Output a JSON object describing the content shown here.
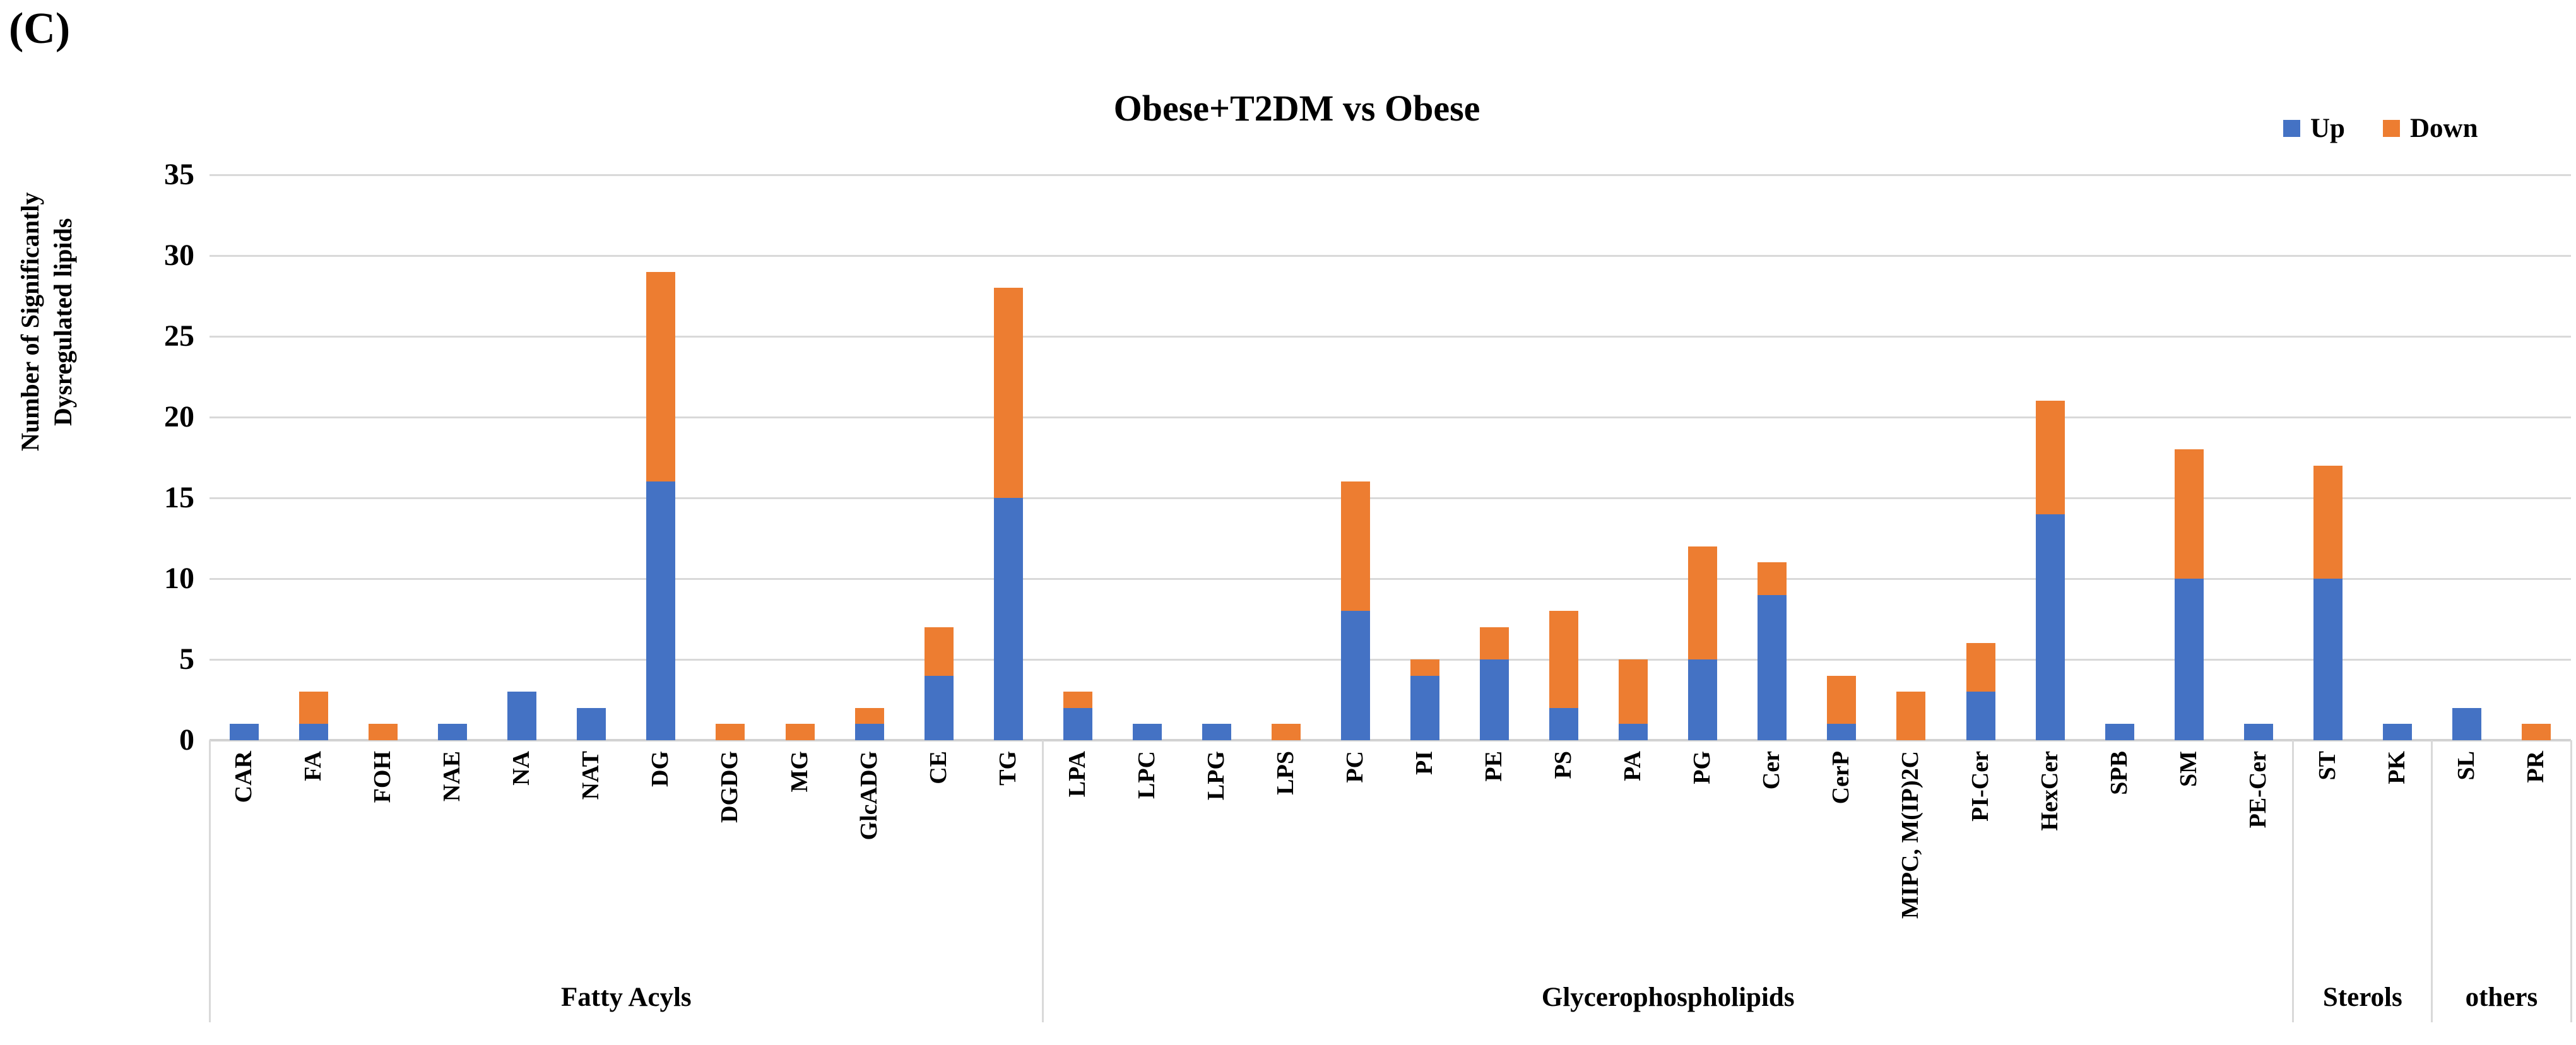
{
  "panel_label": "(C)",
  "colors": {
    "up": "#4472C4",
    "down": "#ED7D31",
    "gridline": "#D9D9D9",
    "axis_line": "#D2D2D2",
    "text": "#000000"
  },
  "chart_data": {
    "type": "bar",
    "stacked": true,
    "title": "Obese+T2DM vs Obese",
    "ylabel_lines": [
      "Number of Significantly",
      "Dysregulated lipids"
    ],
    "xlabel": "",
    "ylim": [
      0,
      35
    ],
    "yticks": [
      0,
      5,
      10,
      15,
      20,
      25,
      30,
      35
    ],
    "grid": true,
    "legend_position": "top-right",
    "legend": [
      {
        "name": "Up",
        "color": "#4472C4"
      },
      {
        "name": "Down",
        "color": "#ED7D31"
      }
    ],
    "categories": [
      "CAR",
      "FA",
      "FOH",
      "NAE",
      "NA",
      "NAT",
      "DG",
      "DGDG",
      "MG",
      "GlcADG",
      "CE",
      "TG",
      "LPA",
      "LPC",
      "LPG",
      "LPS",
      "PC",
      "PI",
      "PE",
      "PS",
      "PA",
      "PG",
      "Cer",
      "CerP",
      "MIPC, M(IP)2C",
      "PI-Cer",
      "HexCer",
      "SPB",
      "SM",
      "PE-Cer",
      "ST",
      "PK",
      "SL",
      "PR"
    ],
    "series": [
      {
        "name": "Up",
        "color": "#4472C4",
        "values": [
          1,
          1,
          0,
          1,
          3,
          2,
          16,
          0,
          0,
          1,
          4,
          15,
          2,
          1,
          1,
          0,
          8,
          4,
          5,
          2,
          1,
          5,
          9,
          1,
          0,
          3,
          14,
          1,
          10,
          1,
          10,
          1,
          2,
          0
        ]
      },
      {
        "name": "Down",
        "color": "#ED7D31",
        "values": [
          0,
          2,
          1,
          0,
          0,
          0,
          13,
          1,
          1,
          1,
          3,
          13,
          1,
          0,
          0,
          1,
          8,
          1,
          2,
          6,
          4,
          7,
          2,
          3,
          3,
          3,
          7,
          0,
          8,
          0,
          7,
          0,
          0,
          1
        ]
      }
    ],
    "groups": [
      {
        "label": "Fatty Acyls",
        "count": 12
      },
      {
        "label": "Glycerophospholipids",
        "count": 18
      },
      {
        "label": "Sterols",
        "count": 2
      },
      {
        "label": "others",
        "count": 2
      }
    ]
  }
}
